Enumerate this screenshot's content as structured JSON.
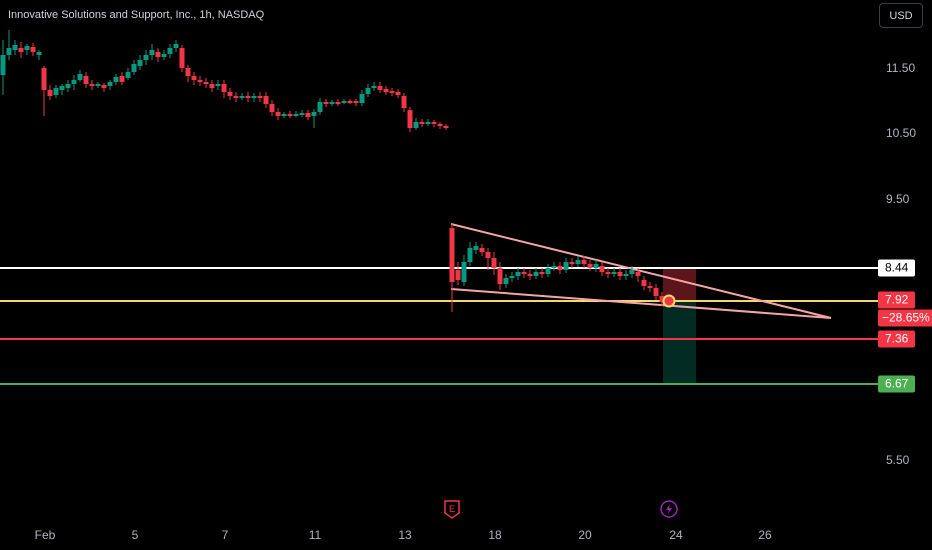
{
  "header": {
    "symbol_title": "Innovative Solutions and Support, Inc., 1h, NASDAQ"
  },
  "price_scale": {
    "currency": "USD",
    "labels": [
      "11.50",
      "10.50",
      "9.50",
      "5.50"
    ]
  },
  "price_tags": {
    "white_line": "8.44",
    "last_price": "7.92",
    "last_change": "−28.65%",
    "stop_loss": "7.36",
    "take_profit": "6.67"
  },
  "time_axis": {
    "labels": [
      "Feb",
      "5",
      "7",
      "11",
      "13",
      "18",
      "20",
      "24",
      "26"
    ]
  },
  "events": [
    {
      "icon": "earnings-icon",
      "glyph": "E",
      "color": "#f23645"
    },
    {
      "icon": "dividend-lightning-icon",
      "glyph": "⚡",
      "color": "#9c27b0"
    }
  ],
  "colors": {
    "bull": "#089981",
    "bear": "#f23645",
    "white_line": "#ffffff",
    "yellow_line": "#f5d86a",
    "red_line": "#f23645",
    "green_line": "#4caf50",
    "wedge": "#f4a6a6",
    "background": "#000000"
  }
}
